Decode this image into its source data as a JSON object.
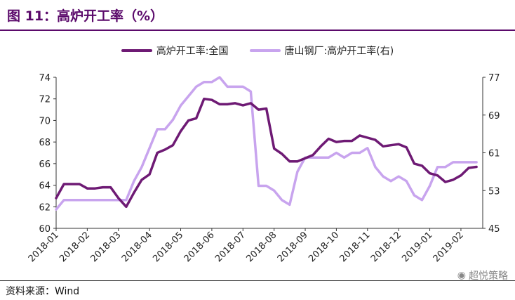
{
  "header": {
    "title": "图 11：高炉开工率（%）"
  },
  "footer": {
    "source": "资料来源：Wind",
    "watermark": "超悦策略"
  },
  "colors": {
    "primary": "#6e1a74",
    "secondary": "#c8a4ee",
    "rule": "#5b0a6b"
  },
  "chart_data": {
    "type": "line",
    "title": "",
    "xlabel": "",
    "ylabel": "",
    "x_ticks": [
      "2018-01",
      "2018-02",
      "2018-03",
      "2018-04",
      "2018-05",
      "2018-06",
      "2018-07",
      "2018-08",
      "2018-09",
      "2018-10",
      "2018-11",
      "2018-12",
      "2019-01",
      "2019-02"
    ],
    "ylim_left": [
      60,
      74
    ],
    "yticks_left": [
      60,
      62,
      64,
      66,
      68,
      70,
      72,
      74
    ],
    "ylim_right": [
      45,
      77
    ],
    "yticks_right": [
      45,
      53,
      61,
      69,
      77
    ],
    "legend_position": "top",
    "series": [
      {
        "name": "高炉开工率:全国",
        "axis": "left",
        "color": "#6e1a74",
        "x": [
          0,
          0.25,
          0.5,
          0.75,
          1.0,
          1.25,
          1.5,
          1.75,
          2.0,
          2.25,
          2.5,
          2.75,
          3.0,
          3.25,
          3.5,
          3.75,
          4.0,
          4.25,
          4.5,
          4.75,
          5.0,
          5.25,
          5.5,
          5.75,
          6.0,
          6.25,
          6.5,
          6.75,
          7.0,
          7.25,
          7.5,
          7.75,
          8.0,
          8.25,
          8.5,
          8.75,
          9.0,
          9.25,
          9.5,
          9.75,
          10.0,
          10.25,
          10.5,
          10.75,
          11.0,
          11.25,
          11.5,
          11.75,
          12.0,
          12.25,
          12.5,
          12.75,
          13.0,
          13.25,
          13.5
        ],
        "values": [
          62.8,
          64.1,
          64.1,
          64.1,
          63.7,
          63.7,
          63.8,
          63.8,
          62.8,
          62.0,
          63.3,
          64.5,
          65.0,
          67.0,
          67.3,
          67.7,
          69.0,
          70.0,
          70.2,
          72.0,
          71.9,
          71.5,
          71.5,
          71.6,
          71.4,
          71.6,
          71.0,
          71.1,
          67.4,
          66.9,
          66.2,
          66.2,
          66.5,
          66.8,
          67.6,
          68.3,
          68.0,
          68.1,
          68.1,
          68.6,
          68.4,
          68.2,
          67.6,
          67.7,
          67.8,
          67.5,
          66.0,
          65.8,
          65.1,
          64.9,
          64.3,
          64.5,
          64.9,
          65.6,
          65.7
        ]
      },
      {
        "name": "唐山钢厂:高炉开工率(右)",
        "axis": "right",
        "color": "#c8a4ee",
        "x": [
          0,
          0.25,
          0.5,
          0.75,
          1.0,
          1.25,
          1.5,
          1.75,
          2.0,
          2.25,
          2.5,
          2.75,
          3.0,
          3.25,
          3.5,
          3.75,
          4.0,
          4.25,
          4.5,
          4.75,
          5.0,
          5.25,
          5.5,
          5.75,
          6.0,
          6.25,
          6.5,
          6.75,
          7.0,
          7.25,
          7.5,
          7.75,
          8.0,
          8.25,
          8.5,
          8.75,
          9.0,
          9.25,
          9.5,
          9.75,
          10.0,
          10.25,
          10.5,
          10.75,
          11.0,
          11.25,
          11.5,
          11.75,
          12.0,
          12.25,
          12.5,
          12.75,
          13.0,
          13.25,
          13.5
        ],
        "values": [
          49,
          51,
          51,
          51,
          51,
          51,
          51,
          51,
          51,
          51,
          55,
          58,
          62,
          66,
          66,
          68,
          71,
          73,
          75,
          76,
          76,
          77,
          75,
          75,
          75,
          74,
          54,
          54,
          53,
          51,
          50,
          57,
          60,
          60,
          60,
          60,
          61,
          60,
          61,
          61,
          62,
          58,
          56,
          55,
          56,
          55,
          52,
          51,
          54,
          58,
          58,
          59,
          59,
          59,
          59
        ]
      }
    ]
  }
}
